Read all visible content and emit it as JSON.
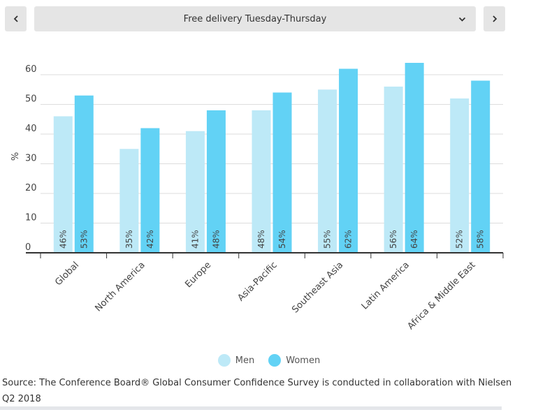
{
  "header": {
    "prev_icon": "chevron-left-icon",
    "next_icon": "chevron-right-icon",
    "dropdown_icon": "chevron-down-icon",
    "selected_option": "Free delivery Tuesday-Thursday"
  },
  "colors": {
    "men": "#bde9f7",
    "women": "#62d2f5",
    "axis": "#333333",
    "grid": "#dddddd"
  },
  "chart_data": {
    "type": "bar",
    "title": "",
    "xlabel": "",
    "ylabel": "%",
    "ylim": [
      0,
      65
    ],
    "yticks": [
      0,
      10,
      20,
      30,
      40,
      50,
      60
    ],
    "grid": true,
    "categories": [
      "Global",
      "North America",
      "Europe",
      "Asia-Pacific",
      "Southeast Asia",
      "Latin America",
      "Africa & Middle East"
    ],
    "series": [
      {
        "name": "Men",
        "values": [
          46,
          35,
          41,
          48,
          55,
          56,
          52
        ],
        "labels": [
          "46%",
          "35%",
          "41%",
          "48%",
          "55%",
          "56%",
          "52%"
        ]
      },
      {
        "name": "Women",
        "values": [
          53,
          42,
          48,
          54,
          62,
          64,
          58
        ],
        "labels": [
          "53%",
          "42%",
          "48%",
          "54%",
          "62%",
          "64%",
          "58%"
        ]
      }
    ],
    "legend_position": "bottom"
  },
  "legend": {
    "men": "Men",
    "women": "Women"
  },
  "source": "Source: The Conference Board® Global Consumer Confidence Survey is conducted in collaboration with Nielsen Q2 2018"
}
